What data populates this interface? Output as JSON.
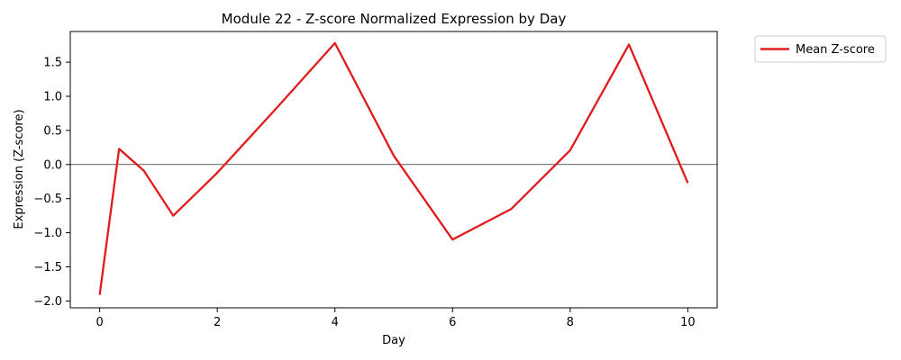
{
  "chart_data": {
    "type": "line",
    "title": "Module 22 - Z-score Normalized Expression by Day",
    "xlabel": "Day",
    "ylabel": "Expression (Z-score)",
    "xlim": [
      -0.5,
      10.5
    ],
    "ylim": [
      -2.1,
      1.95
    ],
    "xticks": [
      0,
      2,
      4,
      6,
      8,
      10
    ],
    "xtick_labels": [
      "0",
      "2",
      "4",
      "6",
      "8",
      "10"
    ],
    "yticks": [
      -2.0,
      -1.5,
      -1.0,
      -0.5,
      0.0,
      0.5,
      1.0,
      1.5
    ],
    "ytick_labels": [
      "−2.0",
      "−1.5",
      "−1.0",
      "−0.5",
      "0.0",
      "0.5",
      "1.0",
      "1.5"
    ],
    "reference_line_y": 0,
    "grid": false,
    "legend_position": "outside-top-right",
    "series": [
      {
        "name": "Mean Z-score",
        "color": "#e31a1c",
        "x": [
          0,
          0.33,
          0.75,
          1.25,
          2,
          3,
          4,
          5,
          6,
          7,
          8,
          9,
          10
        ],
        "y": [
          -1.91,
          0.23,
          -0.09,
          -0.75,
          -0.12,
          0.82,
          1.78,
          0.13,
          -1.1,
          -0.65,
          0.21,
          1.76,
          -0.27
        ]
      }
    ]
  }
}
